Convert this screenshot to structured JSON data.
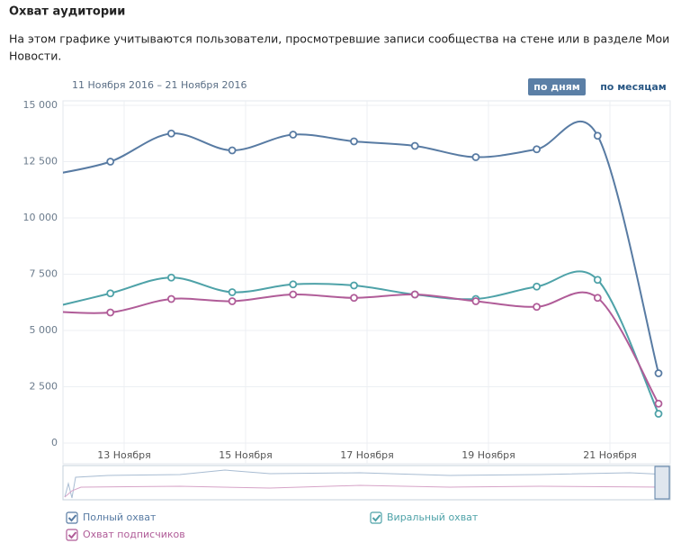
{
  "header": {
    "title": "Охват аудитории",
    "description_line1": "На этом графике учитываются пользователи, просмотревшие записи сообщества на стене или в разделе Мои",
    "description_line2": "Новости."
  },
  "controls": {
    "date_range": "11 Ноября 2016 – 21 Ноября 2016",
    "by_days": "по дням",
    "by_months": "по месяцам"
  },
  "chart_data": {
    "type": "line",
    "categories": [
      null,
      null,
      "13 Ноября",
      null,
      "15 Ноября",
      null,
      "17 Ноября",
      null,
      "19 Ноября",
      null,
      "21 Ноября"
    ],
    "series": [
      {
        "name": "Полный охват",
        "color": "#587ba3",
        "values": [
          11900,
          12500,
          13750,
          13000,
          13700,
          13400,
          13200,
          12700,
          13050,
          13650,
          3100
        ]
      },
      {
        "name": "Виральный охват",
        "color": "#4ea2a8",
        "values": [
          6000,
          6650,
          7350,
          6700,
          7050,
          7000,
          6600,
          6400,
          6950,
          7250,
          1300
        ]
      },
      {
        "name": "Охват подписчиков",
        "color": "#b05c98",
        "values": [
          5850,
          5800,
          6400,
          6300,
          6600,
          6450,
          6600,
          6300,
          6050,
          6450,
          1750
        ]
      }
    ],
    "ylim": [
      0,
      15000
    ],
    "yticks": [
      0,
      {
        "value": 2500,
        "label": "2 500"
      },
      {
        "value": 5000,
        "label": "5 000"
      },
      {
        "value": 7500,
        "label": "7 500"
      },
      {
        "value": 10000,
        "label": "10 000"
      },
      {
        "value": 12500,
        "label": "12 500"
      },
      {
        "value": 15000,
        "label": "15 000"
      }
    ],
    "grid": true
  }
}
